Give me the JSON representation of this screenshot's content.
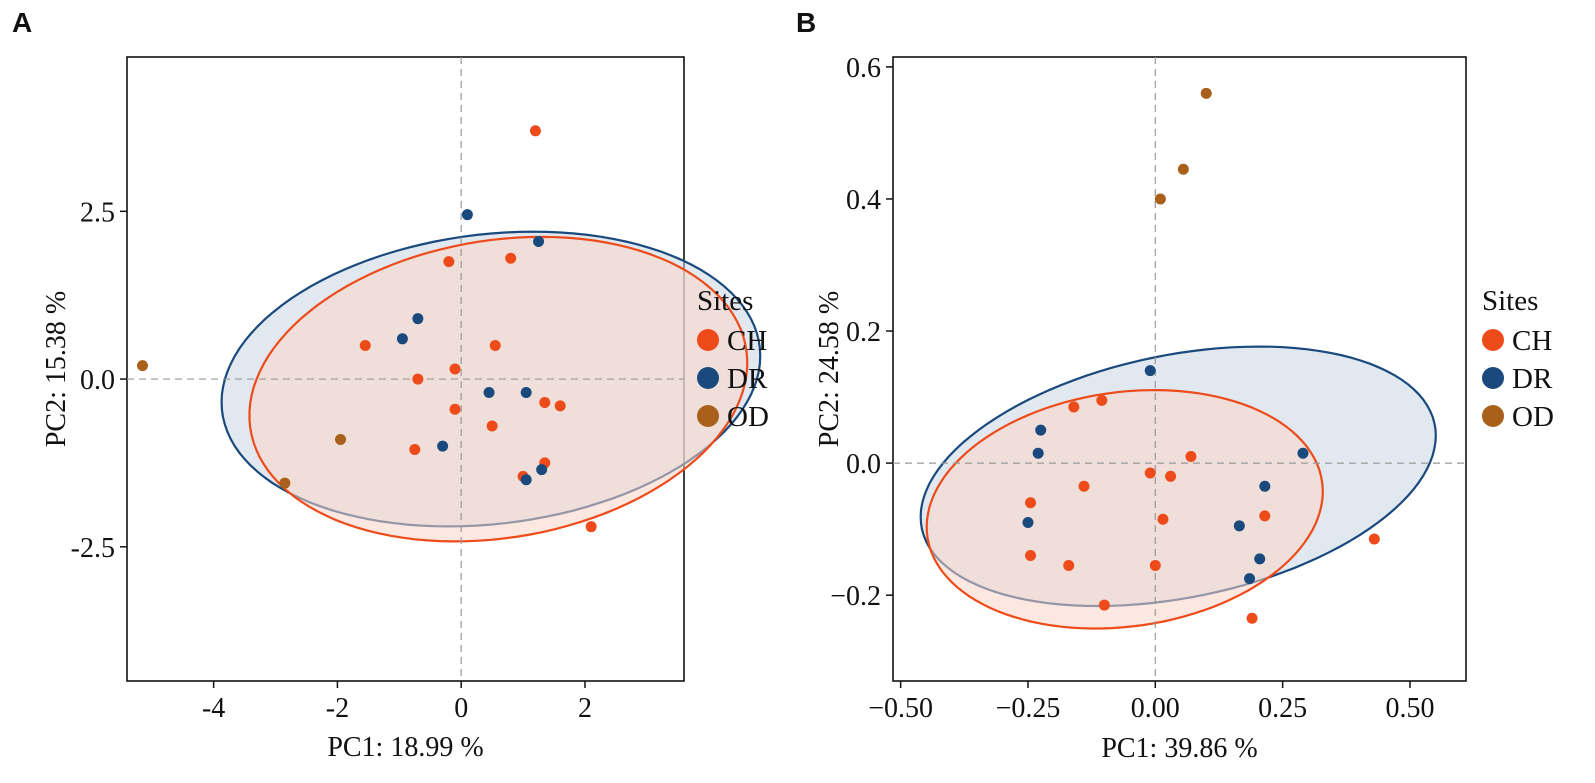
{
  "figure": {
    "legend_title": "Sites",
    "groups": [
      {
        "name": "CH",
        "color": "#EE4B1A",
        "fill": "#F9D5C8"
      },
      {
        "name": "DR",
        "color": "#1A4A7D",
        "fill": "#CBD5E3"
      },
      {
        "name": "OD",
        "color": "#A8601A",
        "fill": "#E8C9A8"
      }
    ]
  },
  "chart_data": [
    {
      "panel": "A",
      "type": "scatter",
      "xlabel": "PC1: 18.99 %",
      "ylabel": "PC2: 15.38 %",
      "xlim": [
        -5.4,
        3.6
      ],
      "ylim": [
        -4.5,
        4.8
      ],
      "xticks": [
        -4,
        -2,
        0,
        2
      ],
      "xtick_labels": [
        "-4",
        "-2",
        "0",
        "2"
      ],
      "yticks": [
        2.5,
        0.0,
        -2.5
      ],
      "ytick_labels": [
        "2.5",
        "0.0",
        "-2.5"
      ],
      "refline_x": 0,
      "refline_y": 0,
      "ellipses": [
        {
          "group": "DR",
          "cx": 0.48,
          "cy": 0.0,
          "rx": 2.16,
          "ry": 4.37,
          "angle_deg": 96
        },
        {
          "group": "CH",
          "cx": 0.6,
          "cy": -0.15,
          "rx": 2.22,
          "ry": 4.05,
          "angle_deg": 98
        }
      ],
      "series": [
        {
          "name": "CH",
          "points": [
            [
              1.2,
              3.7
            ],
            [
              -0.2,
              1.75
            ],
            [
              0.8,
              1.8
            ],
            [
              -1.55,
              0.5
            ],
            [
              0.55,
              0.5
            ],
            [
              -0.1,
              0.15
            ],
            [
              -0.7,
              0.0
            ],
            [
              -0.1,
              -0.45
            ],
            [
              0.5,
              -0.7
            ],
            [
              1.35,
              -0.35
            ],
            [
              1.6,
              -0.4
            ],
            [
              -0.75,
              -1.05
            ],
            [
              1.0,
              -1.45
            ],
            [
              1.35,
              -1.25
            ],
            [
              2.1,
              -2.2
            ]
          ]
        },
        {
          "name": "DR",
          "points": [
            [
              0.1,
              2.45
            ],
            [
              1.25,
              2.05
            ],
            [
              -0.7,
              0.9
            ],
            [
              -0.95,
              0.6
            ],
            [
              0.45,
              -0.2
            ],
            [
              1.05,
              -0.2
            ],
            [
              -0.3,
              -1.0
            ],
            [
              1.05,
              -1.5
            ],
            [
              1.3,
              -1.35
            ]
          ]
        },
        {
          "name": "OD",
          "points": [
            [
              -5.15,
              0.2
            ],
            [
              -1.95,
              -0.9
            ],
            [
              -2.85,
              -1.55
            ]
          ]
        }
      ]
    },
    {
      "panel": "B",
      "type": "scatter",
      "xlabel": "PC1: 39.86 %",
      "ylabel": "PC2: 24.58 %",
      "xlim": [
        -0.515,
        0.61
      ],
      "ylim": [
        -0.33,
        0.615
      ],
      "xticks": [
        -0.5,
        -0.25,
        0.0,
        0.25,
        0.5
      ],
      "xtick_labels": [
        "−0.50",
        "−0.25",
        "0.00",
        "0.25",
        "0.50"
      ],
      "yticks": [
        0.6,
        0.4,
        0.2,
        0.0,
        -0.2
      ],
      "ytick_labels": [
        "0.6",
        "0.4",
        "0.2",
        "0.0",
        "−0.2"
      ],
      "refline_x": 0,
      "refline_y": 0,
      "ellipses": [
        {
          "group": "DR",
          "cx": 0.045,
          "cy": -0.02,
          "rx": 0.51,
          "ry": 0.185,
          "angle_deg": 8
        },
        {
          "group": "CH",
          "cx": -0.06,
          "cy": -0.07,
          "rx": 0.39,
          "ry": 0.178,
          "angle_deg": 5
        }
      ],
      "series": [
        {
          "name": "CH",
          "points": [
            [
              -0.105,
              0.095
            ],
            [
              -0.16,
              0.085
            ],
            [
              -0.245,
              -0.06
            ],
            [
              -0.14,
              -0.035
            ],
            [
              -0.01,
              -0.015
            ],
            [
              0.03,
              -0.02
            ],
            [
              0.07,
              0.01
            ],
            [
              0.015,
              -0.085
            ],
            [
              0.215,
              -0.08
            ],
            [
              -0.245,
              -0.14
            ],
            [
              -0.17,
              -0.155
            ],
            [
              0.0,
              -0.155
            ],
            [
              -0.1,
              -0.215
            ],
            [
              0.19,
              -0.235
            ],
            [
              0.43,
              -0.115
            ]
          ]
        },
        {
          "name": "DR",
          "points": [
            [
              -0.01,
              0.14
            ],
            [
              -0.225,
              0.05
            ],
            [
              -0.23,
              0.015
            ],
            [
              0.29,
              0.015
            ],
            [
              0.215,
              -0.035
            ],
            [
              -0.25,
              -0.09
            ],
            [
              0.165,
              -0.095
            ],
            [
              0.205,
              -0.145
            ],
            [
              0.185,
              -0.175
            ]
          ]
        },
        {
          "name": "OD",
          "points": [
            [
              0.1,
              0.56
            ],
            [
              0.055,
              0.445
            ],
            [
              0.01,
              0.4
            ]
          ]
        }
      ]
    }
  ]
}
